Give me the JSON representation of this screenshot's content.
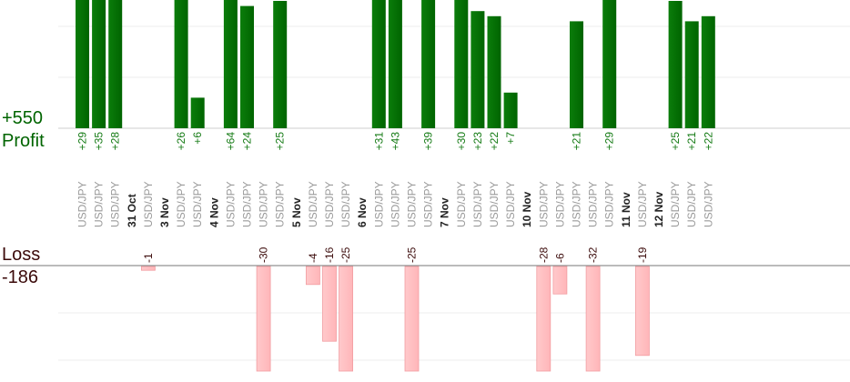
{
  "summary": {
    "profit_total": "+550",
    "profit_label": "Profit",
    "loss_label": "Loss",
    "loss_total": "-186"
  },
  "colors": {
    "profit_bar": "#006400",
    "loss_bar": "#ffb6b9",
    "profit_text": "#137a13",
    "loss_text": "#3b0a0a",
    "pair_text": "#9a9a9a",
    "date_text": "#222222"
  },
  "chart_data": {
    "type": "bar",
    "profit_axis": {
      "min": 0,
      "max": 25,
      "grid_values": [
        10,
        20
      ]
    },
    "loss_axis": {
      "min": -22,
      "max": 0,
      "grid_values": [
        -10,
        -20
      ]
    },
    "columns": [
      {
        "kind": "pair",
        "label": "USD/JPY",
        "value": 29,
        "display": "+29"
      },
      {
        "kind": "pair",
        "label": "USD/JPY",
        "value": 35,
        "display": "+35"
      },
      {
        "kind": "pair",
        "label": "USD/JPY",
        "value": 28,
        "display": "+28"
      },
      {
        "kind": "date",
        "label": "31 Oct"
      },
      {
        "kind": "pair",
        "label": "USD/JPY",
        "value": -1,
        "display": "-1"
      },
      {
        "kind": "date",
        "label": "3 Nov"
      },
      {
        "kind": "pair",
        "label": "USD/JPY",
        "value": 26,
        "display": "+26"
      },
      {
        "kind": "pair",
        "label": "USD/JPY",
        "value": 6,
        "display": "+6"
      },
      {
        "kind": "date",
        "label": "4 Nov"
      },
      {
        "kind": "pair",
        "label": "USD/JPY",
        "value": 64,
        "display": "+64"
      },
      {
        "kind": "pair",
        "label": "USD/JPY",
        "value": 24,
        "display": "+24"
      },
      {
        "kind": "pair",
        "label": "USD/JPY",
        "value": -30,
        "display": "-30"
      },
      {
        "kind": "pair",
        "label": "USD/JPY",
        "value": 25,
        "display": "+25"
      },
      {
        "kind": "date",
        "label": "5 Nov"
      },
      {
        "kind": "pair",
        "label": "USD/JPY",
        "value": -4,
        "display": "-4"
      },
      {
        "kind": "pair",
        "label": "USD/JPY",
        "value": -16,
        "display": "-16"
      },
      {
        "kind": "pair",
        "label": "USD/JPY",
        "value": -25,
        "display": "-25"
      },
      {
        "kind": "date",
        "label": "6 Nov"
      },
      {
        "kind": "pair",
        "label": "USD/JPY",
        "value": 31,
        "display": "+31"
      },
      {
        "kind": "pair",
        "label": "USD/JPY",
        "value": 43,
        "display": "+43"
      },
      {
        "kind": "pair",
        "label": "USD/JPY",
        "value": -25,
        "display": "-25"
      },
      {
        "kind": "pair",
        "label": "USD/JPY",
        "value": 39,
        "display": "+39"
      },
      {
        "kind": "date",
        "label": "7 Nov"
      },
      {
        "kind": "pair",
        "label": "USD/JPY",
        "value": 30,
        "display": "+30"
      },
      {
        "kind": "pair",
        "label": "USD/JPY",
        "value": 23,
        "display": "+23"
      },
      {
        "kind": "pair",
        "label": "USD/JPY",
        "value": 22,
        "display": "+22"
      },
      {
        "kind": "pair",
        "label": "USD/JPY",
        "value": 7,
        "display": "+7"
      },
      {
        "kind": "date",
        "label": "10 Nov"
      },
      {
        "kind": "pair",
        "label": "USD/JPY",
        "value": -28,
        "display": "-28"
      },
      {
        "kind": "pair",
        "label": "USD/JPY",
        "value": -6,
        "display": "-6"
      },
      {
        "kind": "pair",
        "label": "USD/JPY",
        "value": 21,
        "display": "+21"
      },
      {
        "kind": "pair",
        "label": "USD/JPY",
        "value": -32,
        "display": "-32"
      },
      {
        "kind": "pair",
        "label": "USD/JPY",
        "value": 29,
        "display": "+29"
      },
      {
        "kind": "date",
        "label": "11 Nov"
      },
      {
        "kind": "pair",
        "label": "USD/JPY",
        "value": -19,
        "display": "-19"
      },
      {
        "kind": "date",
        "label": "12 Nov"
      },
      {
        "kind": "pair",
        "label": "USD/JPY",
        "value": 25,
        "display": "+25"
      },
      {
        "kind": "pair",
        "label": "USD/JPY",
        "value": 21,
        "display": "+21"
      },
      {
        "kind": "pair",
        "label": "USD/JPY",
        "value": 22,
        "display": "+22"
      }
    ]
  }
}
